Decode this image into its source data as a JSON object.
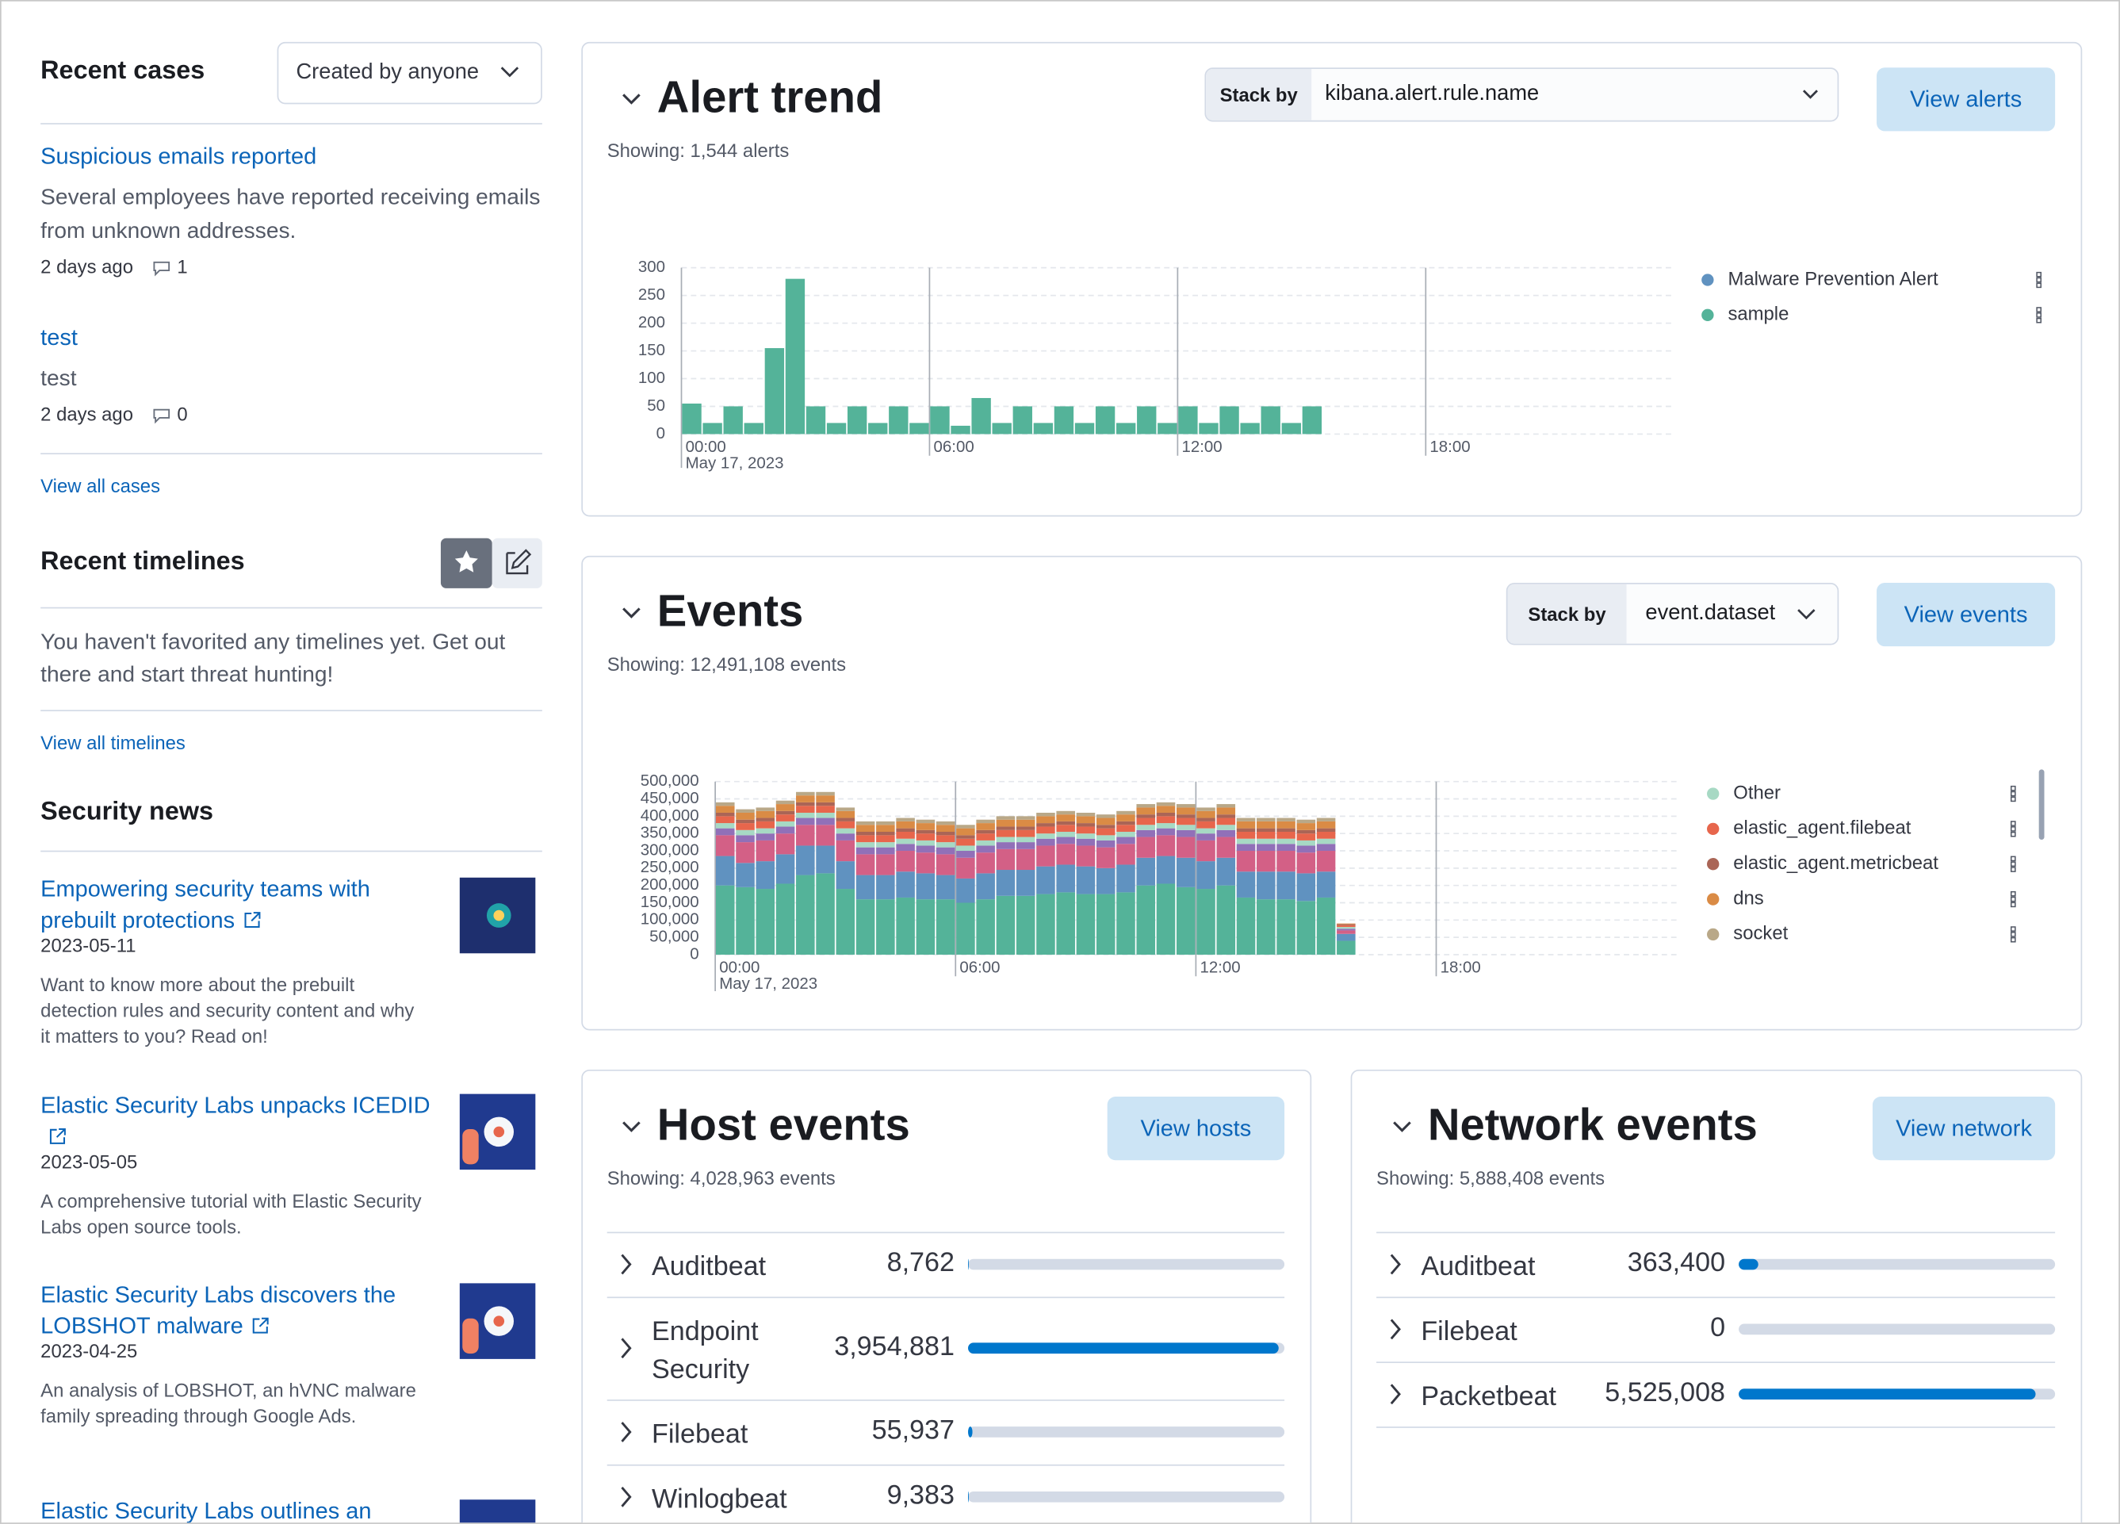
{
  "recent_cases": {
    "title": "Recent cases",
    "filter": "Created by anyone",
    "cases": [
      {
        "title": "Suspicious emails reported",
        "description": "Several employees have reported receiving emails from unknown addresses.",
        "age": "2 days ago",
        "comments": 1
      },
      {
        "title": "test",
        "description": "test",
        "age": "2 days ago",
        "comments": 0
      }
    ],
    "view_all": "View all cases"
  },
  "recent_timelines": {
    "title": "Recent timelines",
    "message": "You haven't favorited any timelines yet. Get out there and start threat hunting!",
    "view_all": "View all timelines"
  },
  "security_news": {
    "title": "Security news",
    "items": [
      {
        "title": "Empowering security teams with prebuilt protections",
        "date": "2023-05-11",
        "summary": "Want to know more about the prebuilt detection rules and security content and why it matters to you? Read on!"
      },
      {
        "title": "Elastic Security Labs unpacks ICEDID",
        "date": "2023-05-05",
        "summary": "A comprehensive tutorial with Elastic Security Labs open source tools."
      },
      {
        "title": "Elastic Security Labs discovers the LOBSHOT malware",
        "date": "2023-04-25",
        "summary": "An analysis of LOBSHOT, an hVNC malware family spreading through Google Ads."
      },
      {
        "title": "Elastic Security Labs outlines an"
      }
    ]
  },
  "chart_data": [
    {
      "type": "bar",
      "stacked": true,
      "title": "Alert trend",
      "subtitle": "Showing: 1,544 alerts",
      "stack_by_label": "Stack by",
      "stack_by": "kibana.alert.rule.name",
      "button": "View alerts",
      "x": [
        0,
        0.5,
        1,
        1.5,
        2,
        2.5,
        3,
        3.5,
        4,
        4.5,
        5,
        5.5,
        6,
        6.5,
        7,
        7.5,
        8,
        8.5,
        9,
        9.5,
        10,
        10.5,
        11,
        11.5,
        12,
        12.5,
        13,
        13.5,
        14,
        14.5,
        15
      ],
      "xlim": [
        0,
        24
      ],
      "xticks": [
        {
          "value": 0,
          "label": "00:00"
        },
        {
          "value": 6,
          "label": "06:00"
        },
        {
          "value": 12,
          "label": "12:00"
        },
        {
          "value": 18,
          "label": "18:00"
        }
      ],
      "x_date_label": "May 17, 2023",
      "ylim": [
        0,
        300
      ],
      "yticks": [
        0,
        50,
        100,
        150,
        200,
        250,
        300
      ],
      "grid": true,
      "legend": "right",
      "series": [
        {
          "name": "Malware Prevention Alert",
          "color": "#6092c0",
          "values": [
            0,
            0,
            0,
            0,
            0,
            0,
            0,
            0,
            0,
            0,
            0,
            0,
            0,
            0,
            0,
            0,
            0,
            0,
            0,
            0,
            0,
            0,
            0,
            0,
            0,
            0,
            0,
            0,
            0,
            0,
            0
          ]
        },
        {
          "name": "sample",
          "color": "#54b399",
          "values": [
            55,
            20,
            50,
            20,
            155,
            280,
            50,
            20,
            50,
            20,
            50,
            20,
            50,
            15,
            65,
            20,
            50,
            20,
            50,
            20,
            50,
            20,
            50,
            20,
            50,
            20,
            50,
            20,
            50,
            20,
            50
          ]
        }
      ]
    },
    {
      "type": "bar",
      "stacked": true,
      "title": "Events",
      "subtitle": "Showing: 12,491,108 events",
      "stack_by_label": "Stack by",
      "stack_by": "event.dataset",
      "button": "View events",
      "x": [
        0,
        0.5,
        1,
        1.5,
        2,
        2.5,
        3,
        3.5,
        4,
        4.5,
        5,
        5.5,
        6,
        6.5,
        7,
        7.5,
        8,
        8.5,
        9,
        9.5,
        10,
        10.5,
        11,
        11.5,
        12,
        12.5,
        13,
        13.5,
        14,
        14.5,
        15,
        15.5
      ],
      "xlim": [
        0,
        24
      ],
      "xticks": [
        {
          "value": 0,
          "label": "00:00"
        },
        {
          "value": 6,
          "label": "06:00"
        },
        {
          "value": 12,
          "label": "12:00"
        },
        {
          "value": 18,
          "label": "18:00"
        }
      ],
      "x_date_label": "May 17, 2023",
      "ylim": [
        0,
        500000
      ],
      "yticks": [
        {
          "value": 0,
          "label": "0"
        },
        {
          "value": 50000,
          "label": "50,000"
        },
        {
          "value": 100000,
          "label": "100,000"
        },
        {
          "value": 150000,
          "label": "150,000"
        },
        {
          "value": 200000,
          "label": "200,000"
        },
        {
          "value": 250000,
          "label": "250,000"
        },
        {
          "value": 300000,
          "label": "300,000"
        },
        {
          "value": 350000,
          "label": "350,000"
        },
        {
          "value": 400000,
          "label": "400,000"
        },
        {
          "value": 450000,
          "label": "450,000"
        },
        {
          "value": 500000,
          "label": "500,000"
        }
      ],
      "grid": true,
      "legend": "right",
      "series": [
        {
          "name": null,
          "color": "#54b399",
          "values": [
            200000,
            195000,
            190000,
            205000,
            230000,
            235000,
            190000,
            160000,
            160000,
            165000,
            160000,
            160000,
            150000,
            160000,
            170000,
            170000,
            175000,
            180000,
            175000,
            175000,
            180000,
            200000,
            205000,
            195000,
            190000,
            200000,
            165000,
            160000,
            160000,
            155000,
            165000,
            40000
          ]
        },
        {
          "name": null,
          "color": "#6092c0",
          "values": [
            85000,
            70000,
            80000,
            85000,
            85000,
            80000,
            80000,
            70000,
            70000,
            75000,
            75000,
            70000,
            70000,
            75000,
            75000,
            75000,
            80000,
            80000,
            80000,
            75000,
            80000,
            80000,
            80000,
            85000,
            80000,
            80000,
            75000,
            80000,
            80000,
            80000,
            75000,
            20000
          ]
        },
        {
          "name": null,
          "color": "#d36086",
          "values": [
            60000,
            60000,
            60000,
            60000,
            60000,
            60000,
            60000,
            60000,
            60000,
            60000,
            60000,
            60000,
            60000,
            60000,
            60000,
            60000,
            60000,
            60000,
            60000,
            60000,
            60000,
            60000,
            60000,
            60000,
            60000,
            60000,
            60000,
            60000,
            60000,
            60000,
            60000,
            10000
          ]
        },
        {
          "name": null,
          "color": "#9170b8",
          "values": [
            20000,
            20000,
            20000,
            20000,
            20000,
            20000,
            20000,
            20000,
            20000,
            20000,
            20000,
            20000,
            20000,
            20000,
            20000,
            20000,
            20000,
            20000,
            20000,
            20000,
            20000,
            20000,
            20000,
            20000,
            20000,
            20000,
            20000,
            20000,
            20000,
            20000,
            20000,
            5000
          ]
        },
        {
          "name": "Other",
          "color": "#a7d9c4",
          "values": [
            15000,
            15000,
            15000,
            15000,
            15000,
            15000,
            15000,
            15000,
            15000,
            15000,
            15000,
            15000,
            15000,
            15000,
            15000,
            15000,
            15000,
            15000,
            15000,
            15000,
            15000,
            15000,
            15000,
            15000,
            15000,
            15000,
            15000,
            15000,
            15000,
            15000,
            15000,
            5000
          ]
        },
        {
          "name": "elastic_agent.filebeat",
          "color": "#e7664c",
          "values": [
            20000,
            20000,
            20000,
            20000,
            20000,
            20000,
            20000,
            20000,
            20000,
            20000,
            20000,
            20000,
            20000,
            20000,
            20000,
            20000,
            20000,
            20000,
            20000,
            20000,
            20000,
            20000,
            20000,
            20000,
            20000,
            20000,
            20000,
            20000,
            20000,
            20000,
            20000,
            5000
          ]
        },
        {
          "name": "elastic_agent.metricbeat",
          "color": "#aa6556",
          "values": [
            10000,
            10000,
            10000,
            10000,
            10000,
            10000,
            10000,
            10000,
            10000,
            10000,
            10000,
            10000,
            10000,
            10000,
            10000,
            10000,
            10000,
            10000,
            10000,
            10000,
            10000,
            10000,
            10000,
            10000,
            10000,
            10000,
            10000,
            10000,
            10000,
            10000,
            10000,
            3000
          ]
        },
        {
          "name": "dns",
          "color": "#da8b45",
          "values": [
            20000,
            20000,
            20000,
            20000,
            20000,
            20000,
            20000,
            20000,
            20000,
            20000,
            20000,
            20000,
            20000,
            20000,
            20000,
            20000,
            20000,
            20000,
            20000,
            20000,
            20000,
            20000,
            20000,
            20000,
            20000,
            20000,
            20000,
            20000,
            20000,
            20000,
            20000,
            2000
          ]
        },
        {
          "name": "socket",
          "color": "#b9a888",
          "values": [
            10000,
            10000,
            10000,
            10000,
            10000,
            10000,
            10000,
            10000,
            10000,
            10000,
            10000,
            10000,
            10000,
            10000,
            10000,
            10000,
            10000,
            10000,
            10000,
            10000,
            10000,
            10000,
            10000,
            10000,
            10000,
            10000,
            10000,
            10000,
            10000,
            10000,
            10000,
            0
          ]
        }
      ]
    }
  ],
  "host_events": {
    "title": "Host events",
    "button": "View hosts",
    "showing": "Showing: 4,028,963 events",
    "categories": [
      "Auditbeat",
      "Endpoint Security",
      "Filebeat",
      "Winlogbeat"
    ],
    "values": [
      8762,
      3954881,
      55937,
      9383
    ],
    "value_labels": [
      "8,762",
      "3,954,881",
      "55,937",
      "9,383"
    ]
  },
  "network_events": {
    "title": "Network events",
    "button": "View network",
    "showing": "Showing: 5,888,408 events",
    "categories": [
      "Auditbeat",
      "Filebeat",
      "Packetbeat"
    ],
    "values": [
      363400,
      0,
      5525008
    ],
    "value_labels": [
      "363,400",
      "0",
      "5,525,008"
    ]
  }
}
